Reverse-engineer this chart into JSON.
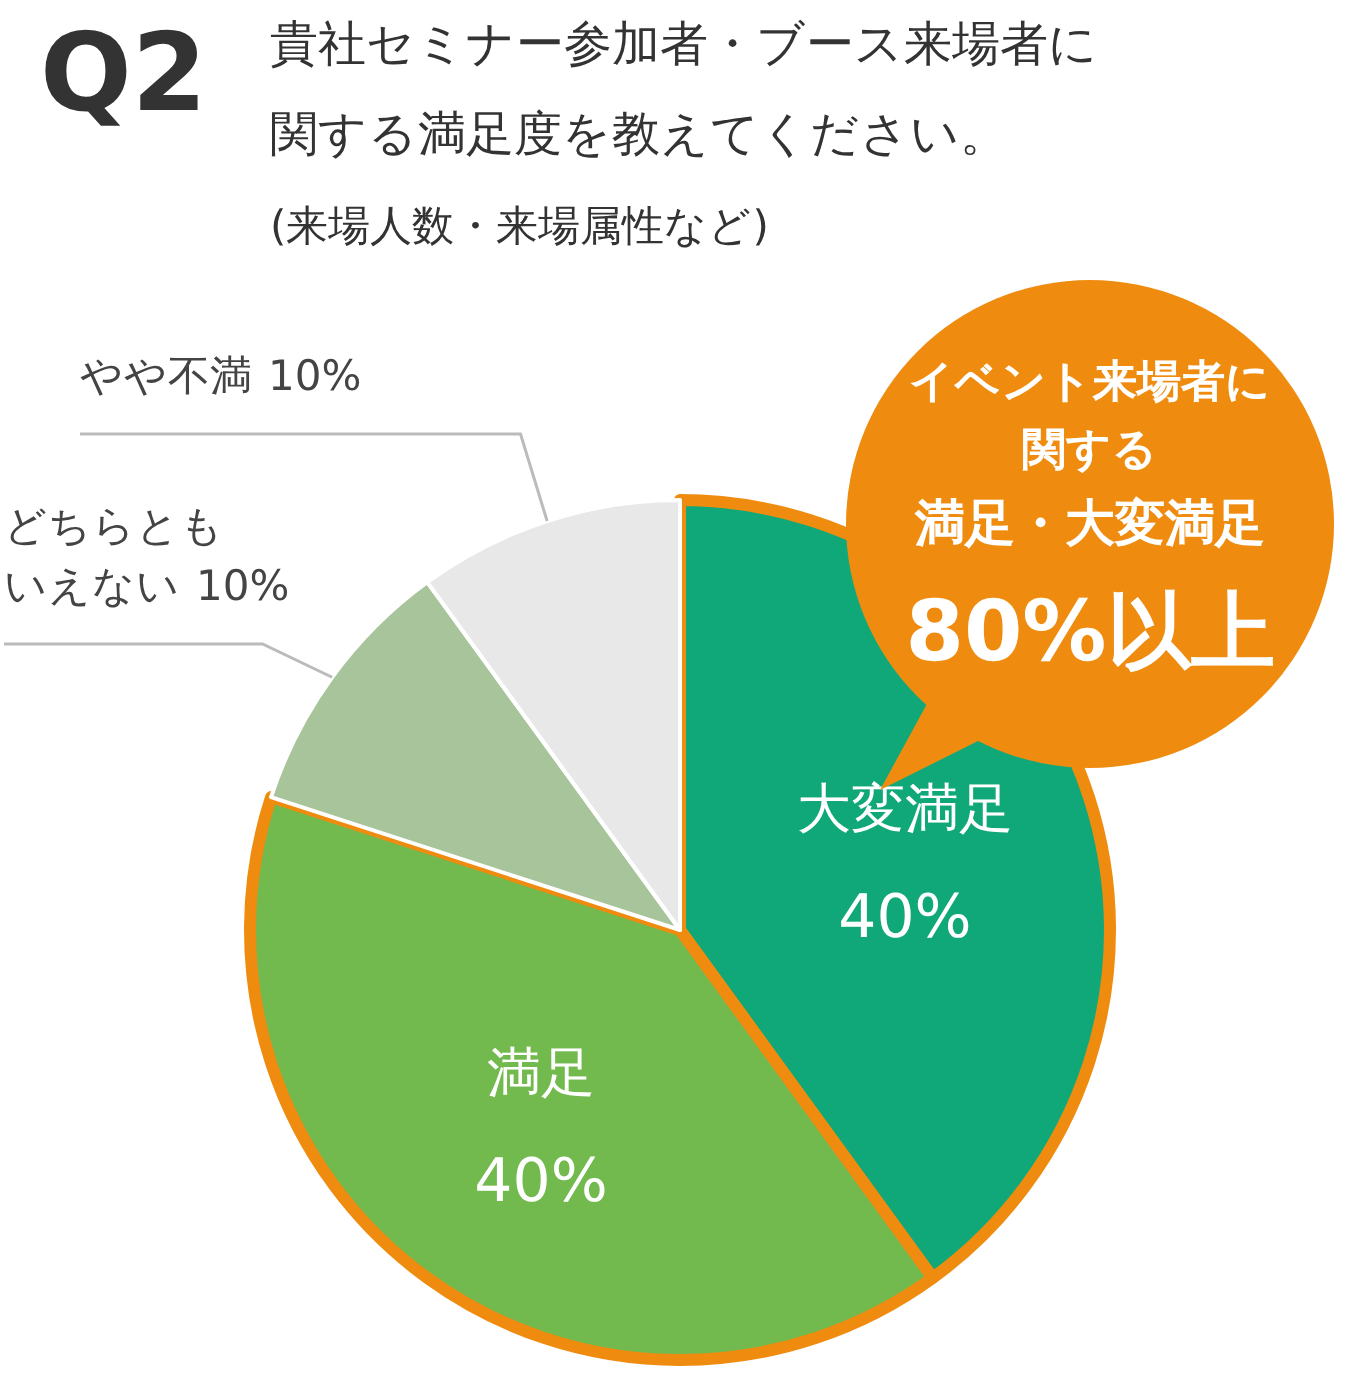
{
  "chart_data": {
    "type": "pie",
    "title": "Q2",
    "subtitle": "貴社セミナー参加者・ブース来場者に関する満足度を教えてください。",
    "categories": [
      "大変満足",
      "満足",
      "どちらともいえない",
      "やや不満"
    ],
    "values": [
      40,
      40,
      10,
      10
    ],
    "colors": [
      "#10a878",
      "#72b94e",
      "#a8c49a",
      "#e8e8e8"
    ],
    "value_labels": [
      "40%",
      "40%",
      "10%",
      "10%"
    ],
    "legend": false,
    "annotations": [
      "(来場人数・来場属性など)",
      "イベント来場者に",
      "関する",
      "満足・大変満足",
      "80%以上"
    ]
  }
}
